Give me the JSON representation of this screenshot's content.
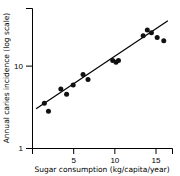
{
  "chart_data": {
    "type": "scatter",
    "xlabel": "Sugar consumption (kg/capita/year)",
    "ylabel": "Annual caries incidence (log scale)",
    "log": "y",
    "series": [
      {
        "type": "scatter",
        "color": "#111111",
        "x": [
          1.5,
          2.0,
          3.5,
          4.2,
          5.0,
          6.2,
          6.8,
          9.8,
          10.2,
          10.5,
          13.5,
          14.0,
          14.5,
          15.2,
          16.0
        ],
        "values": [
          3.5,
          2.8,
          5.2,
          4.5,
          5.8,
          7.8,
          6.8,
          11.5,
          11.0,
          11.5,
          23.0,
          27.0,
          25.0,
          22.0,
          20.0
        ]
      },
      {
        "type": "line",
        "color": "#000000",
        "x": [
          0.5,
          16.5
        ],
        "values": [
          3.0,
          35.0
        ]
      }
    ],
    "xlim": [
      0,
      17
    ],
    "ylim": [
      1,
      50
    ],
    "xticks": [
      5,
      10,
      15
    ],
    "yticks": [
      1,
      10
    ]
  }
}
